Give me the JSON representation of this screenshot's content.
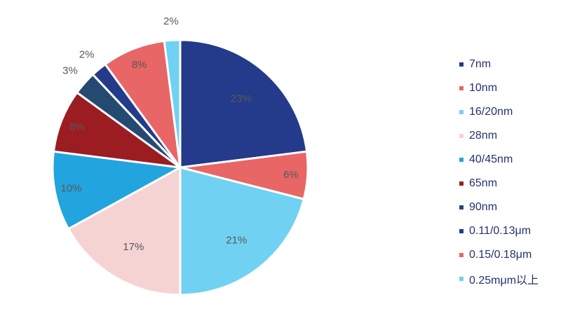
{
  "chart_data": {
    "type": "pie",
    "title": "",
    "categories": [
      "7nm",
      "10nm",
      "16/20nm",
      "28nm",
      "40/45nm",
      "65nm",
      "90nm",
      "0.11/0.13μm",
      "0.15/0.18μm",
      "0.25mμm以上"
    ],
    "values": [
      23,
      6,
      21,
      17,
      10,
      8,
      3,
      2,
      8,
      2
    ],
    "labels": [
      "23%",
      "6%",
      "21%",
      "17%",
      "10%",
      "8%",
      "3%",
      "2%",
      "8%",
      "2%"
    ],
    "colors": [
      "#243a8a",
      "#e86666",
      "#71d1f2",
      "#f6d3d3",
      "#22a4de",
      "#9b1d22",
      "#254a72",
      "#243a8a",
      "#e86666",
      "#71d1f2"
    ],
    "start": "12 o'clock",
    "direction": "clockwise",
    "legend_position": "right"
  },
  "legend": [
    {
      "label": "7nm",
      "color": "#243a8a"
    },
    {
      "label": "10nm",
      "color": "#e86666"
    },
    {
      "label": "16/20nm",
      "color": "#71d1f2"
    },
    {
      "label": "28nm",
      "color": "#f6d3d3"
    },
    {
      "label": "40/45nm",
      "color": "#22a4de"
    },
    {
      "label": "65nm",
      "color": "#9b1d22"
    },
    {
      "label": "90nm",
      "color": "#254a72"
    },
    {
      "label": "0.11/0.13μm",
      "color": "#243a8a"
    },
    {
      "label": "0.15/0.18μm",
      "color": "#e86666"
    },
    {
      "label": "0.25mμm以上",
      "color": "#71d1f2"
    }
  ]
}
